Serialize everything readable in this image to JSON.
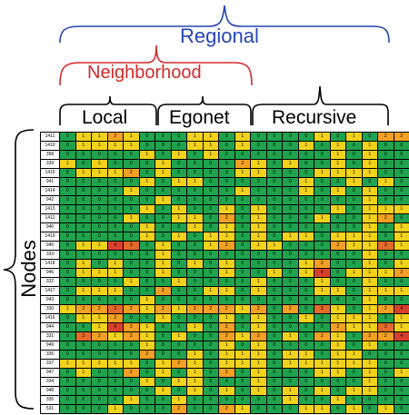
{
  "labels": {
    "regional": "Regional",
    "neighborhood": "Neighborhood",
    "local": "Local",
    "egonet": "Egonet",
    "recursive": "Recursive",
    "nodes": "Nodes"
  },
  "colors": {
    "regional": "#2745b5",
    "neighborhood": "#d42a2a",
    "level_0": "#1fa34d",
    "level_1": "#f2d21b",
    "level_2": "#f3a024",
    "level_3": "#e36a2a",
    "level_4": "#d9402c"
  },
  "table": {
    "row_ids": [
      "1411",
      "1410",
      "358",
      "339",
      "1415",
      "941",
      "1414",
      "942",
      "1413",
      "1412",
      "940",
      "1419",
      "945",
      "333",
      "1418",
      "946",
      "332",
      "1417",
      "943",
      "330",
      "1416",
      "944",
      "331",
      "949",
      "336",
      "337",
      "947",
      "334",
      "948",
      "335",
      "531"
    ],
    "rows": [
      [
        0,
        1,
        1,
        2,
        1,
        0,
        0,
        0,
        1,
        1,
        0,
        1,
        0,
        0,
        0,
        0,
        1,
        0,
        1,
        0,
        2,
        2
      ],
      [
        0,
        1,
        1,
        1,
        1,
        0,
        0,
        0,
        1,
        1,
        0,
        1,
        0,
        0,
        0,
        1,
        0,
        1,
        0,
        1,
        0,
        0
      ],
      [
        0,
        0,
        0,
        0,
        0,
        1,
        0,
        1,
        0,
        1,
        0,
        0,
        0,
        0,
        0,
        0,
        0,
        1,
        0,
        1,
        0,
        0
      ],
      [
        1,
        0,
        1,
        0,
        0,
        0,
        1,
        0,
        0,
        0,
        0,
        2,
        1,
        0,
        1,
        0,
        0,
        1,
        0,
        1,
        0,
        0
      ],
      [
        0,
        1,
        1,
        1,
        2,
        0,
        1,
        0,
        0,
        0,
        0,
        1,
        1,
        0,
        0,
        0,
        1,
        1,
        1,
        1,
        0,
        0
      ],
      [
        0,
        0,
        0,
        0,
        0,
        1,
        0,
        1,
        1,
        0,
        0,
        0,
        0,
        0,
        0,
        1,
        0,
        0,
        1,
        0,
        1,
        0
      ],
      [
        0,
        0,
        0,
        0,
        1,
        0,
        0,
        0,
        0,
        0,
        0,
        1,
        0,
        0,
        0,
        1,
        0,
        1,
        0,
        1,
        0,
        0
      ],
      [
        0,
        0,
        0,
        0,
        0,
        0,
        1,
        0,
        0,
        0,
        0,
        0,
        0,
        0,
        0,
        0,
        0,
        0,
        0,
        1,
        0,
        0
      ],
      [
        0,
        0,
        0,
        0,
        0,
        1,
        0,
        1,
        0,
        0,
        1,
        0,
        1,
        0,
        0,
        0,
        0,
        1,
        0,
        1,
        1,
        1
      ],
      [
        0,
        0,
        0,
        0,
        1,
        0,
        0,
        1,
        1,
        0,
        2,
        0,
        1,
        0,
        0,
        0,
        1,
        0,
        0,
        1,
        2,
        0
      ],
      [
        0,
        0,
        0,
        0,
        0,
        1,
        0,
        0,
        1,
        0,
        1,
        0,
        1,
        0,
        0,
        0,
        0,
        0,
        0,
        1,
        0,
        1
      ],
      [
        0,
        0,
        0,
        0,
        0,
        1,
        0,
        1,
        0,
        1,
        1,
        0,
        1,
        0,
        1,
        1,
        0,
        1,
        1,
        1,
        0,
        1
      ],
      [
        0,
        1,
        1,
        4,
        3,
        0,
        1,
        0,
        0,
        1,
        2,
        0,
        1,
        1,
        0,
        0,
        0,
        2,
        1,
        1,
        3,
        1
      ],
      [
        0,
        0,
        0,
        0,
        0,
        0,
        1,
        0,
        0,
        0,
        0,
        0,
        0,
        0,
        0,
        0,
        0,
        0,
        0,
        1,
        0,
        0
      ],
      [
        0,
        1,
        0,
        1,
        0,
        0,
        1,
        0,
        1,
        0,
        1,
        0,
        0,
        0,
        0,
        1,
        2,
        0,
        0,
        1,
        0,
        1
      ],
      [
        0,
        1,
        1,
        1,
        0,
        0,
        1,
        0,
        0,
        0,
        1,
        0,
        0,
        1,
        0,
        1,
        4,
        0,
        1,
        1,
        1,
        2
      ],
      [
        0,
        0,
        0,
        0,
        1,
        0,
        0,
        1,
        0,
        0,
        0,
        0,
        1,
        0,
        0,
        0,
        1,
        0,
        0,
        1,
        0,
        0
      ],
      [
        0,
        1,
        1,
        1,
        0,
        0,
        2,
        0,
        0,
        1,
        1,
        0,
        1,
        0,
        0,
        0,
        1,
        1,
        0,
        1,
        1,
        1
      ],
      [
        0,
        0,
        0,
        0,
        0,
        1,
        0,
        0,
        0,
        0,
        0,
        0,
        0,
        0,
        0,
        0,
        0,
        0,
        0,
        1,
        0,
        0
      ],
      [
        1,
        2,
        2,
        3,
        2,
        1,
        2,
        1,
        2,
        2,
        2,
        1,
        2,
        0,
        2,
        0,
        3,
        1,
        0,
        1,
        2,
        4
      ],
      [
        0,
        1,
        1,
        2,
        0,
        0,
        1,
        0,
        0,
        0,
        1,
        0,
        1,
        0,
        0,
        1,
        0,
        1,
        1,
        1,
        0,
        1
      ],
      [
        0,
        0,
        1,
        4,
        2,
        1,
        0,
        0,
        1,
        0,
        2,
        0,
        1,
        0,
        0,
        0,
        0,
        2,
        1,
        1,
        3,
        1
      ],
      [
        0,
        3,
        2,
        1,
        2,
        1,
        0,
        1,
        0,
        0,
        2,
        1,
        2,
        0,
        1,
        0,
        2,
        1,
        0,
        2,
        2,
        4
      ],
      [
        0,
        0,
        0,
        0,
        0,
        1,
        0,
        0,
        0,
        0,
        1,
        0,
        1,
        0,
        0,
        0,
        0,
        1,
        0,
        1,
        0,
        0
      ],
      [
        0,
        0,
        0,
        0,
        0,
        2,
        0,
        0,
        1,
        0,
        1,
        1,
        1,
        0,
        1,
        1,
        0,
        1,
        1,
        0,
        0,
        0
      ],
      [
        1,
        1,
        1,
        1,
        1,
        0,
        1,
        2,
        1,
        0,
        1,
        1,
        1,
        0,
        1,
        1,
        1,
        1,
        1,
        1,
        0,
        0
      ],
      [
        0,
        1,
        0,
        0,
        2,
        0,
        1,
        0,
        1,
        0,
        2,
        0,
        1,
        0,
        0,
        0,
        1,
        1,
        0,
        1,
        0,
        1
      ],
      [
        0,
        0,
        0,
        0,
        0,
        1,
        0,
        1,
        1,
        0,
        0,
        0,
        1,
        0,
        0,
        0,
        0,
        0,
        0,
        1,
        0,
        0
      ],
      [
        0,
        0,
        0,
        0,
        0,
        0,
        1,
        0,
        1,
        0,
        1,
        0,
        1,
        0,
        1,
        0,
        1,
        0,
        1,
        1,
        0,
        0
      ],
      [
        0,
        0,
        0,
        0,
        1,
        0,
        0,
        1,
        0,
        0,
        0,
        0,
        0,
        0,
        1,
        0,
        0,
        1,
        0,
        0,
        0,
        0
      ],
      [
        0,
        0,
        0,
        1,
        0,
        0,
        0,
        2,
        0,
        0,
        2,
        1,
        0,
        0,
        0,
        1,
        1,
        0,
        1,
        0,
        1,
        0
      ]
    ]
  }
}
